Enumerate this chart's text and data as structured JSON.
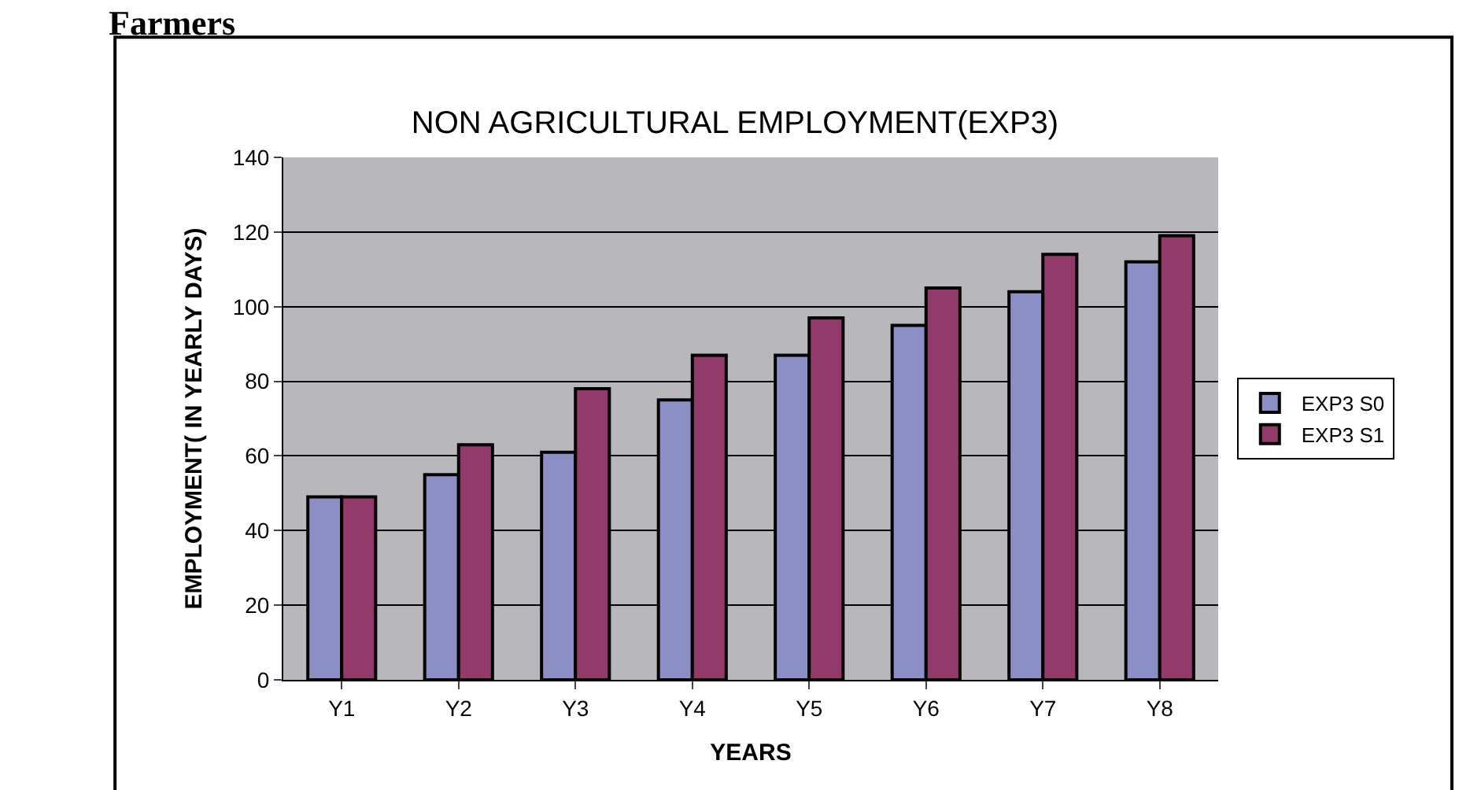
{
  "chart_data": {
    "type": "bar",
    "title": "NON AGRICULTURAL EMPLOYMENT(EXP3)",
    "xlabel": "YEARS",
    "ylabel": "EMPLOYMENT( IN YEARLY DAYS)",
    "annotations": [
      "Farmers"
    ],
    "categories": [
      "Y1",
      "Y2",
      "Y3",
      "Y4",
      "Y5",
      "Y6",
      "Y7",
      "Y8"
    ],
    "series": [
      {
        "name": "EXP3 S0",
        "color": "#8b8fc4",
        "values": [
          49,
          55,
          61,
          75,
          87,
          95,
          104,
          112
        ]
      },
      {
        "name": "EXP3 S1",
        "color": "#943a6a",
        "values": [
          49,
          63,
          78,
          87,
          97,
          105,
          114,
          119
        ]
      }
    ],
    "ylim": [
      0,
      140
    ],
    "yticks": [
      0,
      20,
      40,
      60,
      80,
      100,
      120,
      140
    ],
    "grid": "y",
    "legend": "right"
  }
}
